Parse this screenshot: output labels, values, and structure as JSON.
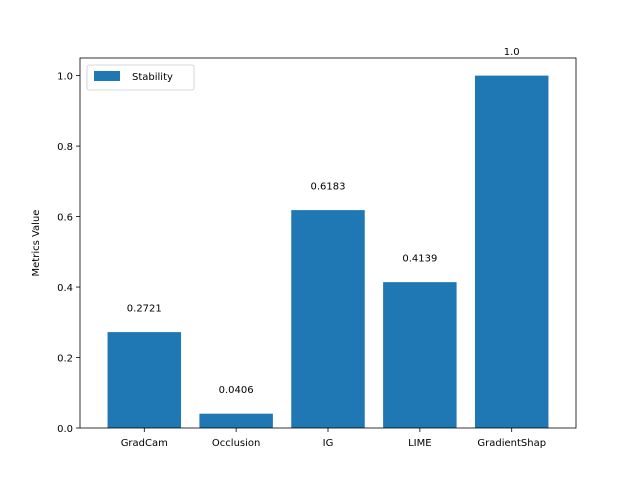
{
  "chart_data": {
    "type": "bar",
    "categories": [
      "GradCam",
      "Occlusion",
      "IG",
      "LIME",
      "GradientShap"
    ],
    "series": [
      {
        "name": "Stability",
        "values": [
          0.2721,
          0.0406,
          0.6183,
          0.4139,
          1.0
        ],
        "color": "#1f77b4"
      }
    ],
    "data_labels": [
      "0.2721",
      "0.0406",
      "0.6183",
      "0.4139",
      "1.0"
    ],
    "xlabel": "",
    "ylabel": "Metrics Value",
    "ylim": [
      0.0,
      1.05
    ],
    "yticks": [
      0.0,
      0.2,
      0.4,
      0.6,
      0.8,
      1.0
    ],
    "ytick_labels": [
      "0.0",
      "0.2",
      "0.4",
      "0.6",
      "0.8",
      "1.0"
    ],
    "grid": false,
    "legend": {
      "placement": "top-left",
      "entries": [
        "Stability"
      ]
    }
  }
}
